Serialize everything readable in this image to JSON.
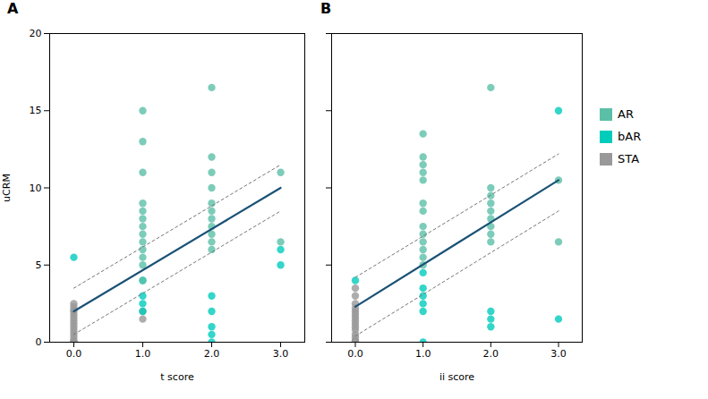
{
  "chart_data": [
    {
      "type": "scatter",
      "title": "A",
      "xlabel": "t score",
      "ylabel": "uCRM",
      "xlim": [
        -0.35,
        3.35
      ],
      "xticks": [
        0,
        1,
        2,
        3
      ],
      "ylim": [
        0,
        20
      ],
      "yticks": [
        0,
        5,
        10,
        15,
        20
      ],
      "grid": false,
      "series": [
        {
          "name": "AR",
          "color": "#5BBFA8",
          "x": [
            1,
            1,
            1,
            1,
            1,
            1,
            1,
            1,
            1,
            1,
            1,
            1,
            1,
            2,
            2,
            2,
            2,
            2,
            2,
            2,
            2,
            2,
            2,
            2,
            3,
            3
          ],
          "values": [
            15,
            13,
            11,
            9,
            8.5,
            8,
            7.5,
            7,
            6.5,
            6,
            5.5,
            5,
            4,
            16.5,
            12,
            11,
            10,
            9,
            8.5,
            8,
            7.5,
            7,
            6.5,
            6,
            11,
            6.5
          ]
        },
        {
          "name": "bAR",
          "color": "#00CCBB",
          "x": [
            0,
            1,
            1,
            1,
            1,
            2,
            2,
            2,
            2,
            2,
            3,
            3
          ],
          "values": [
            5.5,
            4,
            3,
            2.5,
            2,
            3,
            2,
            1,
            0.5,
            0,
            6,
            5
          ]
        },
        {
          "name": "STA",
          "color": "#999999",
          "x": [
            0,
            0,
            0,
            0,
            0,
            0,
            0,
            0,
            0,
            0,
            0,
            0,
            0,
            0,
            0,
            0,
            0,
            0,
            0,
            1,
            1
          ],
          "values": [
            2.5,
            2.3,
            2.1,
            2.0,
            1.8,
            1.6,
            1.4,
            1.2,
            1.0,
            0.8,
            0.6,
            0.4,
            0.2,
            0.0,
            0.0,
            0.0,
            0.0,
            0.0,
            0.0,
            2.0,
            1.5
          ]
        },
        {
          "type": "line",
          "line_style": "solid",
          "color": "#1A5276",
          "x": [
            0,
            3
          ],
          "values": [
            2.0,
            10.0
          ]
        },
        {
          "type": "line",
          "line_style": "dashed",
          "color": "#777777",
          "x": [
            0,
            3
          ],
          "values": [
            3.5,
            11.5
          ]
        },
        {
          "type": "line",
          "line_style": "dashed",
          "color": "#777777",
          "x": [
            0,
            3
          ],
          "values": [
            0.5,
            8.5
          ]
        }
      ]
    },
    {
      "type": "scatter",
      "title": "B",
      "xlabel": "ii score",
      "tick_labels": "x",
      "legend": "right",
      "xlim": [
        -0.35,
        3.35
      ],
      "xticks": [
        0,
        1,
        2,
        3
      ],
      "ylim": [
        0,
        20
      ],
      "yticks": [
        0,
        5,
        10,
        15,
        20
      ],
      "grid": false,
      "series": [
        {
          "name": "AR",
          "color": "#5BBFA8",
          "x": [
            1,
            1,
            1,
            1,
            1,
            1,
            1,
            1,
            1,
            1,
            1,
            1,
            1,
            2,
            2,
            2,
            2,
            2,
            2,
            2,
            2,
            2,
            3,
            3
          ],
          "values": [
            13.5,
            12,
            11.5,
            11,
            10.5,
            9,
            8.5,
            7.5,
            7,
            6.5,
            6,
            5.5,
            5,
            16.5,
            10,
            9.5,
            9,
            8.5,
            8,
            7.5,
            7,
            6.5,
            10.5,
            6.5
          ]
        },
        {
          "name": "bAR",
          "color": "#00CCBB",
          "x": [
            0,
            1,
            1,
            1,
            1,
            1,
            1,
            2,
            2,
            2,
            3,
            3
          ],
          "values": [
            4,
            4.5,
            3.5,
            3,
            2.5,
            2,
            0,
            2,
            1.5,
            1,
            15,
            1.5
          ]
        },
        {
          "name": "STA",
          "color": "#999999",
          "x": [
            0,
            0,
            0,
            0,
            0,
            0,
            0,
            0,
            0,
            0,
            0,
            0,
            0,
            0,
            0,
            0,
            0,
            0,
            0,
            0
          ],
          "values": [
            3.5,
            3.0,
            2.5,
            2.2,
            2.0,
            1.8,
            1.6,
            1.4,
            1.2,
            1.0,
            0.8,
            0.5,
            0.3,
            0.1,
            0.0,
            0.0,
            0.0,
            0.0,
            0.0,
            0.0
          ]
        },
        {
          "type": "line",
          "line_style": "solid",
          "color": "#1A5276",
          "x": [
            0,
            3
          ],
          "values": [
            2.3,
            10.5
          ]
        },
        {
          "type": "line",
          "line_style": "dashed",
          "color": "#777777",
          "x": [
            0,
            3
          ],
          "values": [
            4.2,
            12.2
          ]
        },
        {
          "type": "line",
          "line_style": "dashed",
          "color": "#777777",
          "x": [
            0,
            3
          ],
          "values": [
            0.4,
            8.5
          ]
        }
      ]
    }
  ]
}
